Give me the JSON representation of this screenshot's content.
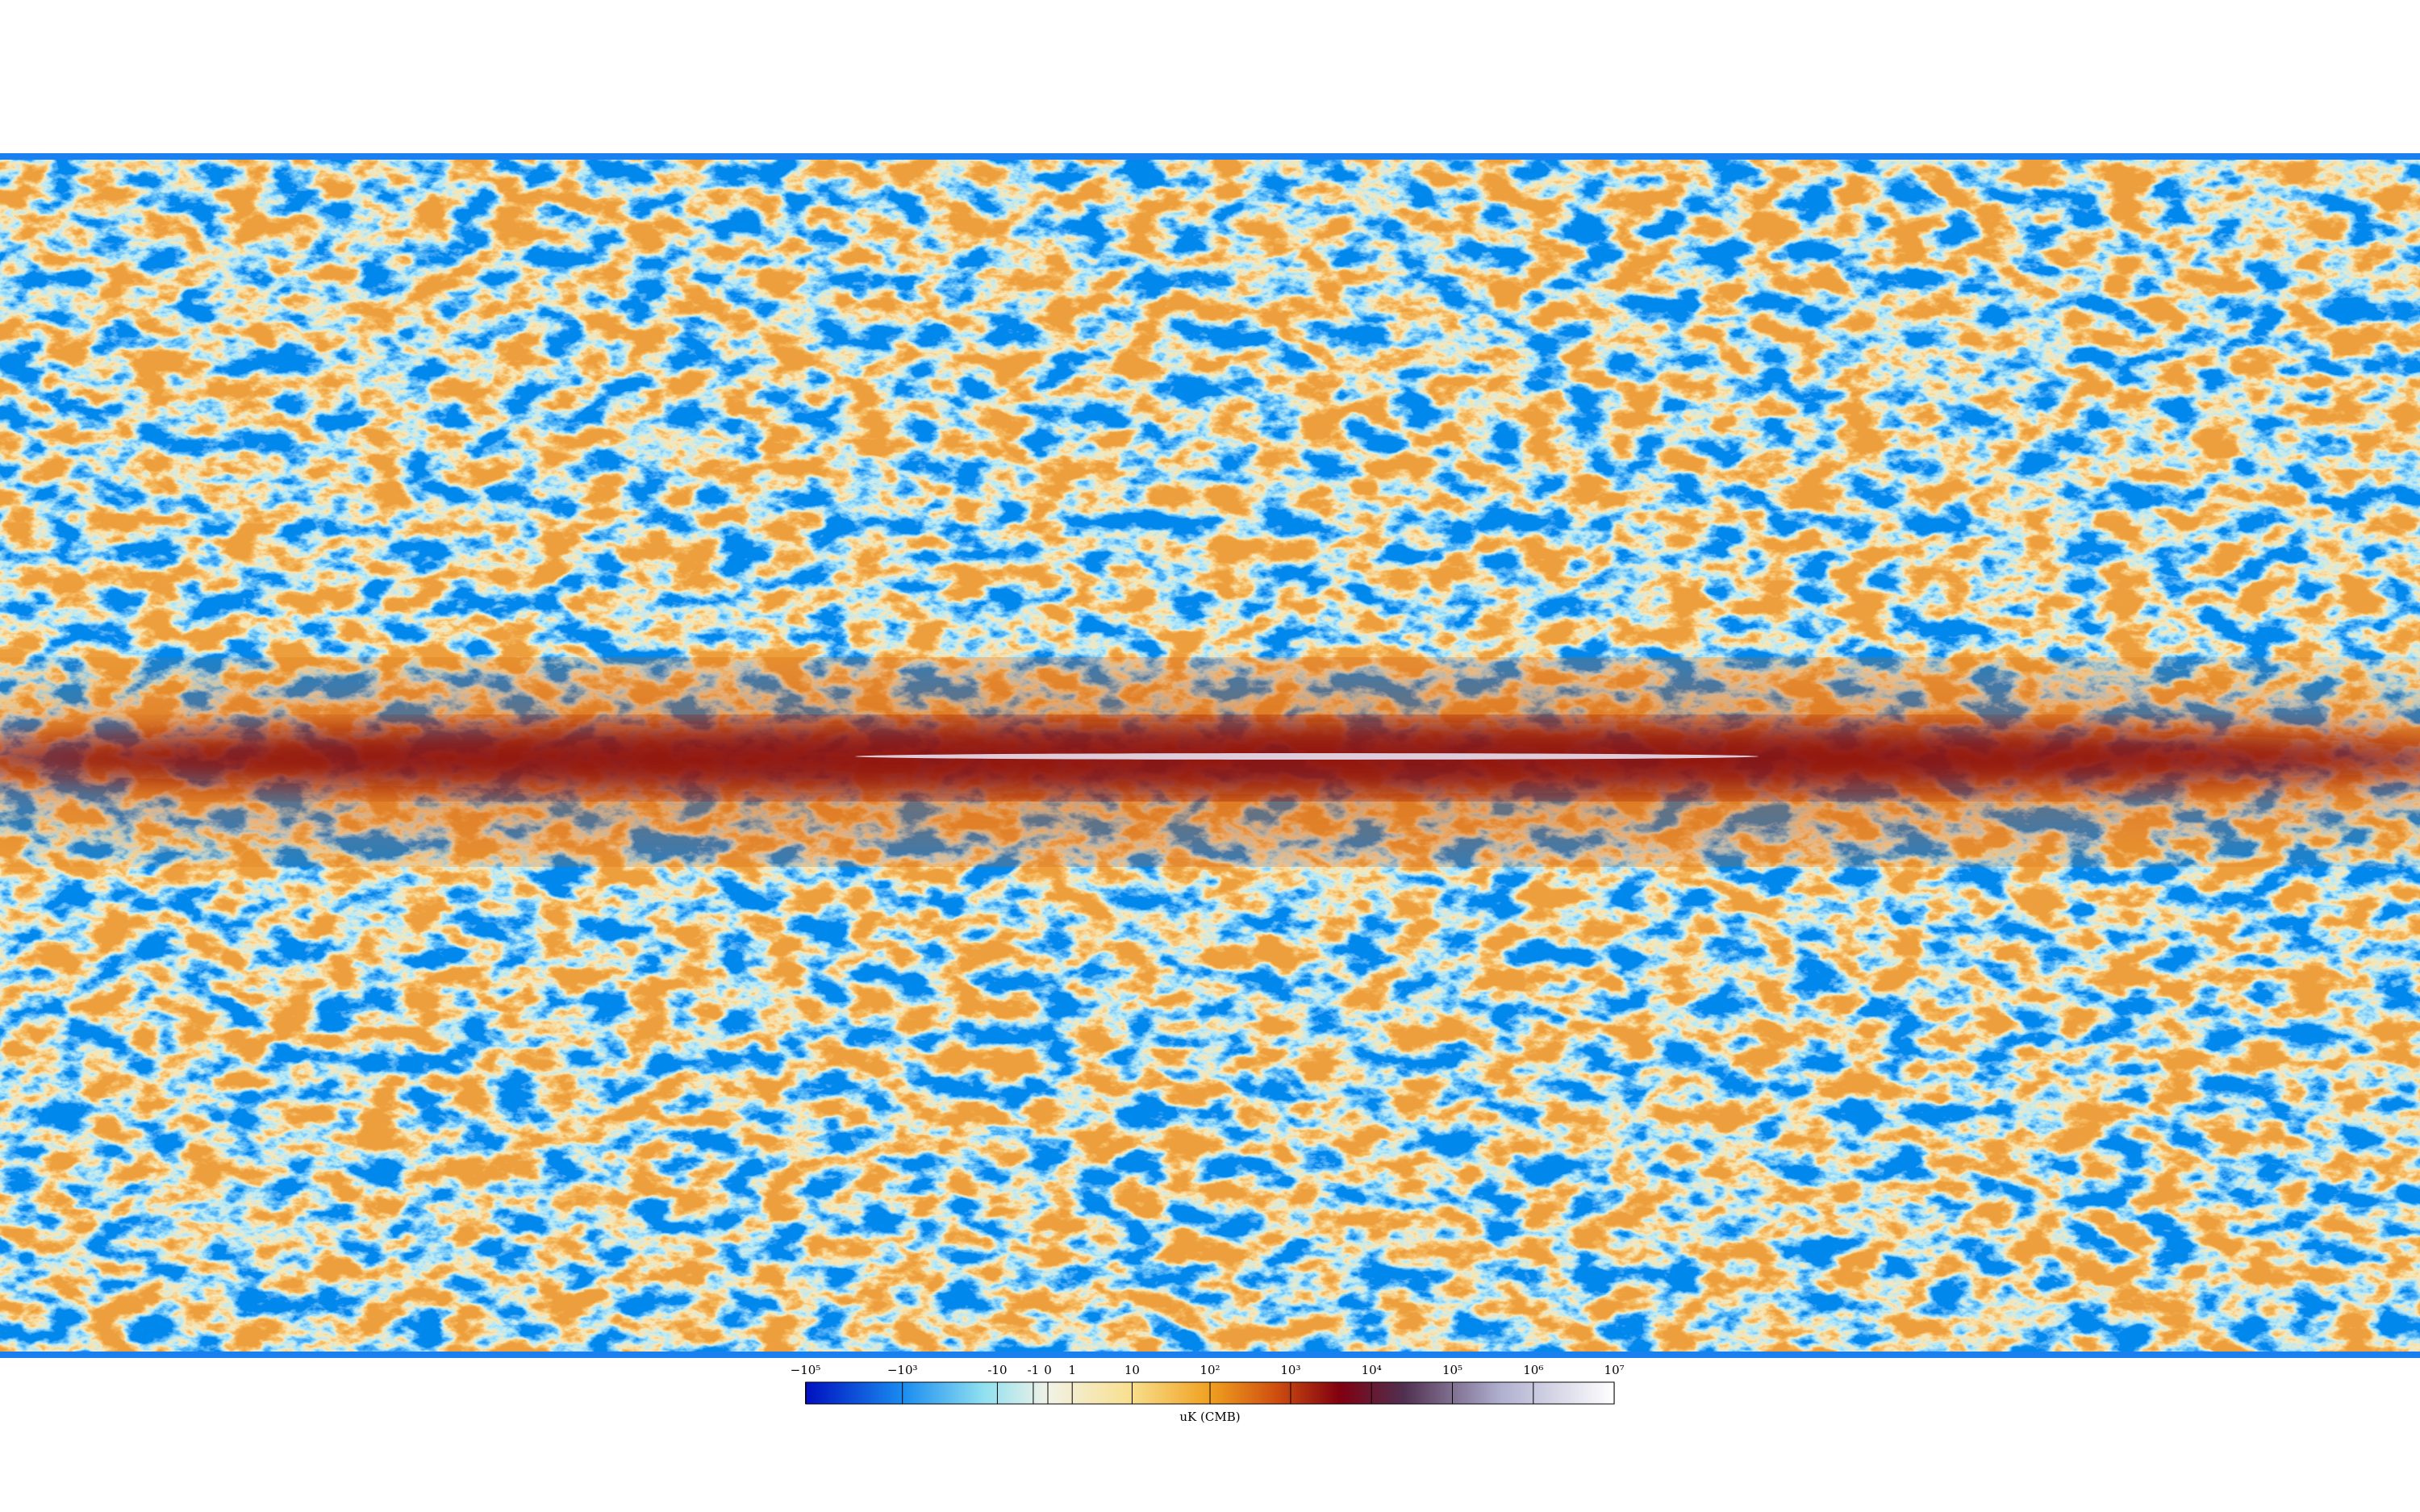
{
  "colorbar": {
    "label": "uK (CMB)",
    "ticks": [
      {
        "value": -100000,
        "label": "−10⁵"
      },
      {
        "value": -1000,
        "label": "−10³"
      },
      -10,
      -1,
      0,
      1,
      10,
      {
        "value": 100,
        "label": "10²"
      },
      {
        "value": 1000,
        "label": "10³"
      },
      {
        "value": 10000,
        "label": "10⁴"
      },
      {
        "value": 100000,
        "label": "10⁵"
      },
      {
        "value": 1000000,
        "label": "10⁶"
      },
      {
        "value": 10000000,
        "label": "10⁷"
      }
    ]
  }
}
